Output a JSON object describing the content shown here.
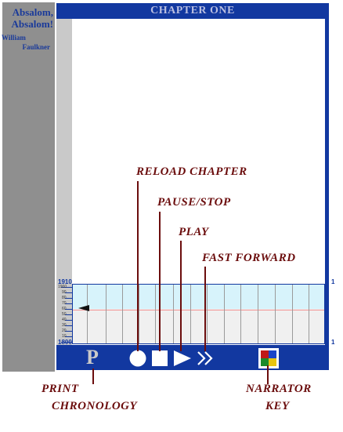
{
  "sidebar": {
    "title_line1": "Absalom,",
    "title_line2": "Absalom!",
    "author_first": "William",
    "author_last": "Faulkner"
  },
  "header": {
    "chapter_title": "CHAPTER ONE"
  },
  "timeline": {
    "start_year": "1910",
    "end_year": "1800",
    "tick_labels": [
      "1900",
      "90",
      "80",
      "70",
      "60",
      "50",
      "40",
      "30",
      "20",
      "10"
    ],
    "right_top": "1",
    "right_bottom": "1"
  },
  "controls": {
    "print_glyph": "P",
    "icons": [
      "circle-icon",
      "square-icon",
      "play-icon",
      "fast-forward-icon",
      "narrator-key-icon"
    ]
  },
  "callouts": {
    "reload": "RELOAD CHAPTER",
    "pause": "PAUSE/STOP",
    "play": "PLAY",
    "fast_forward": "FAST FORWARD",
    "print_line1": "PRINT",
    "print_line2": "CHRONOLOGY",
    "narrator_line1": "NARRATOR",
    "narrator_line2": "KEY"
  },
  "colors": {
    "frame_blue": "#1238a0",
    "callout_red": "#6b0d0d",
    "timeline_cyan": "#d7f3fb"
  }
}
